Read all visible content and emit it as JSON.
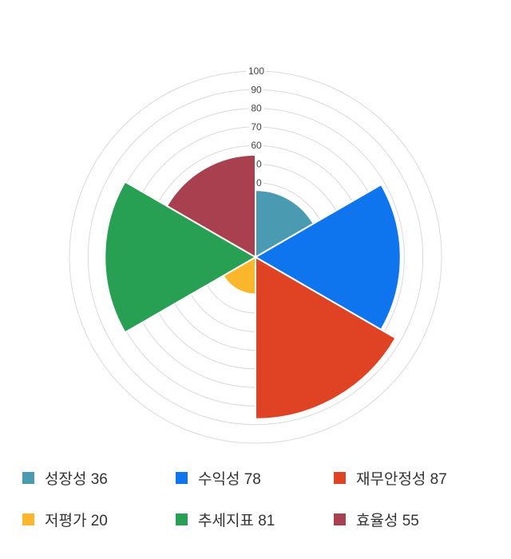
{
  "chart_data": {
    "type": "polar_area",
    "title": "",
    "series": [
      {
        "name": "성장성",
        "value": 36,
        "color": "#4a9bb1"
      },
      {
        "name": "수익성",
        "value": 78,
        "color": "#0e75ee"
      },
      {
        "name": "재무안정성",
        "value": 87,
        "color": "#e04323"
      },
      {
        "name": "저평가",
        "value": 20,
        "color": "#fbb62c"
      },
      {
        "name": "추세지표",
        "value": 81,
        "color": "#27a053"
      },
      {
        "name": "효율성",
        "value": 55,
        "color": "#a8404f"
      }
    ],
    "axis": {
      "min": 0,
      "max": 100,
      "tick_step": 10,
      "tick_labels": [
        "100",
        "90",
        "80",
        "70",
        "60",
        "50",
        "40"
      ],
      "gridline_color": "#d9d9d9",
      "tick_label_color": "#444444",
      "grid": true
    },
    "start_angle_deg": 0,
    "sector_sweep_deg": 60,
    "separator_color": "#ffffff",
    "legend_position": "bottom"
  },
  "legend": {
    "value_separator": " "
  }
}
